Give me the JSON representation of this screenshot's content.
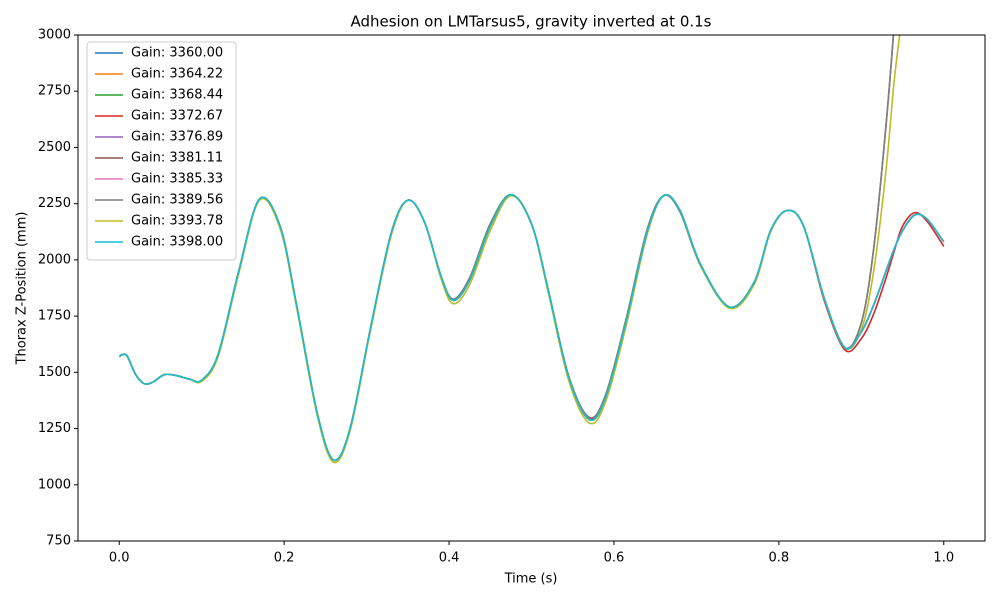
{
  "chart_data": {
    "type": "line",
    "title": "Adhesion on LMTarsus5, gravity inverted at 0.1s",
    "xlabel": "Time (s)",
    "ylabel": "Thorax Z-Position (mm)",
    "x": [
      0,
      0.005,
      0.01,
      0.02,
      0.03,
      0.04,
      0.055,
      0.07,
      0.085,
      0.1,
      0.12,
      0.145,
      0.17,
      0.195,
      0.215,
      0.24,
      0.26,
      0.28,
      0.305,
      0.33,
      0.35,
      0.37,
      0.39,
      0.405,
      0.425,
      0.45,
      0.475,
      0.5,
      0.52,
      0.545,
      0.57,
      0.59,
      0.615,
      0.64,
      0.66,
      0.68,
      0.705,
      0.74,
      0.77,
      0.79,
      0.81,
      0.83,
      0.855,
      0.88,
      0.9,
      0.915,
      0.93,
      0.94,
      0.95,
      0.965,
      0.98,
      1.0
    ],
    "series": [
      {
        "name": "Gain: 3360.00",
        "color": "#1f77b4",
        "values": [
          1570,
          1580,
          1570,
          1490,
          1450,
          1455,
          1490,
          1485,
          1470,
          1465,
          1580,
          1950,
          2270,
          2150,
          1800,
          1320,
          1110,
          1250,
          1700,
          2120,
          2265,
          2170,
          1930,
          1820,
          1910,
          2150,
          2290,
          2160,
          1870,
          1480,
          1290,
          1390,
          1730,
          2120,
          2285,
          2220,
          1980,
          1790,
          1900,
          2130,
          2220,
          2150,
          1830,
          1610,
          1680,
          1800,
          1950,
          2050,
          2130,
          2200,
          2180,
          2080
        ]
      },
      {
        "name": "Gain: 3364.22",
        "color": "#ff7f0e",
        "values": [
          1570,
          1580,
          1570,
          1490,
          1450,
          1455,
          1490,
          1485,
          1470,
          1465,
          1580,
          1950,
          2270,
          2150,
          1800,
          1320,
          1110,
          1250,
          1700,
          2120,
          2265,
          2170,
          1930,
          1820,
          1910,
          2150,
          2290,
          2160,
          1870,
          1480,
          1290,
          1390,
          1730,
          2120,
          2285,
          2220,
          1980,
          1790,
          1900,
          2130,
          2220,
          2150,
          1830,
          1610,
          1680,
          1800,
          1950,
          2050,
          2130,
          2200,
          2180,
          2080
        ]
      },
      {
        "name": "Gain: 3368.44",
        "color": "#2ca02c",
        "values": [
          1570,
          1580,
          1570,
          1490,
          1450,
          1455,
          1490,
          1485,
          1470,
          1465,
          1580,
          1950,
          2270,
          2150,
          1800,
          1320,
          1110,
          1250,
          1700,
          2120,
          2265,
          2170,
          1930,
          1820,
          1910,
          2150,
          2290,
          2160,
          1870,
          1480,
          1290,
          1390,
          1730,
          2120,
          2285,
          2220,
          1980,
          1790,
          1900,
          2130,
          2220,
          2150,
          1830,
          1610,
          1680,
          1800,
          1950,
          2050,
          2130,
          2200,
          2180,
          2080
        ]
      },
      {
        "name": "Gain: 3372.67",
        "color": "#d62728",
        "values": [
          1570,
          1580,
          1570,
          1490,
          1450,
          1455,
          1490,
          1485,
          1470,
          1465,
          1580,
          1950,
          2270,
          2150,
          1800,
          1320,
          1110,
          1250,
          1700,
          2120,
          2265,
          2170,
          1930,
          1825,
          1920,
          2160,
          2290,
          2160,
          1870,
          1480,
          1295,
          1400,
          1740,
          2130,
          2285,
          2215,
          1975,
          1790,
          1900,
          2130,
          2220,
          2150,
          1820,
          1600,
          1650,
          1760,
          1920,
          2040,
          2150,
          2210,
          2170,
          2060
        ]
      },
      {
        "name": "Gain: 3376.89",
        "color": "#9467bd",
        "values": [
          1570,
          1580,
          1570,
          1490,
          1450,
          1455,
          1490,
          1485,
          1470,
          1465,
          1580,
          1950,
          2270,
          2150,
          1800,
          1320,
          1110,
          1250,
          1700,
          2120,
          2265,
          2170,
          1930,
          1820,
          1910,
          2150,
          2290,
          2160,
          1870,
          1480,
          1290,
          1390,
          1730,
          2120,
          2285,
          2220,
          1980,
          1790,
          1900,
          2130,
          2220,
          2150,
          1830,
          1610,
          1680,
          1800,
          1950,
          2050,
          2130,
          2200,
          2180,
          2080
        ]
      },
      {
        "name": "Gain: 3381.11",
        "color": "#8c564b",
        "values": [
          1570,
          1580,
          1570,
          1490,
          1450,
          1455,
          1490,
          1485,
          1470,
          1465,
          1580,
          1950,
          2270,
          2150,
          1800,
          1320,
          1110,
          1250,
          1700,
          2120,
          2265,
          2170,
          1930,
          1825,
          1920,
          2160,
          2290,
          2160,
          1870,
          1485,
          1300,
          1400,
          1740,
          2130,
          2285,
          2215,
          1975,
          1790,
          1900,
          2130,
          2220,
          2150,
          1830,
          1610,
          1720,
          2050,
          2600,
          3050,
          null,
          null,
          null,
          null
        ]
      },
      {
        "name": "Gain: 3385.33",
        "color": "#e377c2",
        "values": [
          1570,
          1580,
          1570,
          1490,
          1450,
          1455,
          1490,
          1485,
          1470,
          1465,
          1580,
          1950,
          2270,
          2150,
          1800,
          1320,
          1110,
          1250,
          1700,
          2120,
          2265,
          2170,
          1930,
          1820,
          1910,
          2150,
          2290,
          2160,
          1870,
          1480,
          1290,
          1390,
          1730,
          2120,
          2285,
          2220,
          1980,
          1790,
          1900,
          2130,
          2220,
          2150,
          1830,
          1610,
          1680,
          1800,
          1950,
          2050,
          2130,
          2200,
          2180,
          2080
        ]
      },
      {
        "name": "Gain: 3389.56",
        "color": "#7f7f7f",
        "values": [
          1570,
          1580,
          1570,
          1490,
          1450,
          1455,
          1490,
          1485,
          1470,
          1465,
          1580,
          1950,
          2270,
          2150,
          1800,
          1320,
          1110,
          1250,
          1700,
          2120,
          2265,
          2170,
          1930,
          1825,
          1920,
          2160,
          2290,
          2160,
          1870,
          1485,
          1300,
          1400,
          1740,
          2130,
          2285,
          2215,
          1975,
          1790,
          1900,
          2130,
          2220,
          2150,
          1830,
          1610,
          1720,
          2050,
          2600,
          3050,
          null,
          null,
          null,
          null
        ]
      },
      {
        "name": "Gain: 3393.78",
        "color": "#bcbd22",
        "values": [
          1570,
          1580,
          1570,
          1490,
          1450,
          1455,
          1490,
          1485,
          1470,
          1460,
          1570,
          1940,
          2265,
          2140,
          1790,
          1310,
          1100,
          1240,
          1690,
          2110,
          2265,
          2170,
          1920,
          1805,
          1890,
          2130,
          2285,
          2160,
          1860,
          1465,
          1275,
          1370,
          1710,
          2110,
          2285,
          2220,
          1975,
          1785,
          1890,
          2125,
          2220,
          2150,
          1830,
          1610,
          1690,
          1950,
          2400,
          2800,
          3100,
          null,
          null,
          null
        ]
      },
      {
        "name": "Gain: 3398.00",
        "color": "#17becf",
        "values": [
          1570,
          1580,
          1570,
          1490,
          1450,
          1455,
          1490,
          1485,
          1470,
          1465,
          1580,
          1950,
          2270,
          2150,
          1800,
          1320,
          1110,
          1250,
          1700,
          2120,
          2265,
          2170,
          1930,
          1820,
          1910,
          2150,
          2290,
          2160,
          1870,
          1480,
          1290,
          1390,
          1730,
          2120,
          2285,
          2220,
          1980,
          1790,
          1900,
          2130,
          2220,
          2150,
          1830,
          1610,
          1680,
          1800,
          1950,
          2050,
          2130,
          2200,
          2180,
          2080
        ]
      }
    ],
    "xlim": [
      -0.05,
      1.05
    ],
    "ylim": [
      750,
      3000
    ],
    "xticks": [
      {
        "value": 0,
        "label": "0.0"
      },
      0.2,
      0.4,
      0.6,
      0.8,
      {
        "value": 1,
        "label": "1.0"
      }
    ],
    "yticks": [
      750,
      1000,
      1250,
      1500,
      1750,
      2000,
      2250,
      2500,
      2750,
      3000
    ],
    "legend": "upper left",
    "grid": false
  }
}
